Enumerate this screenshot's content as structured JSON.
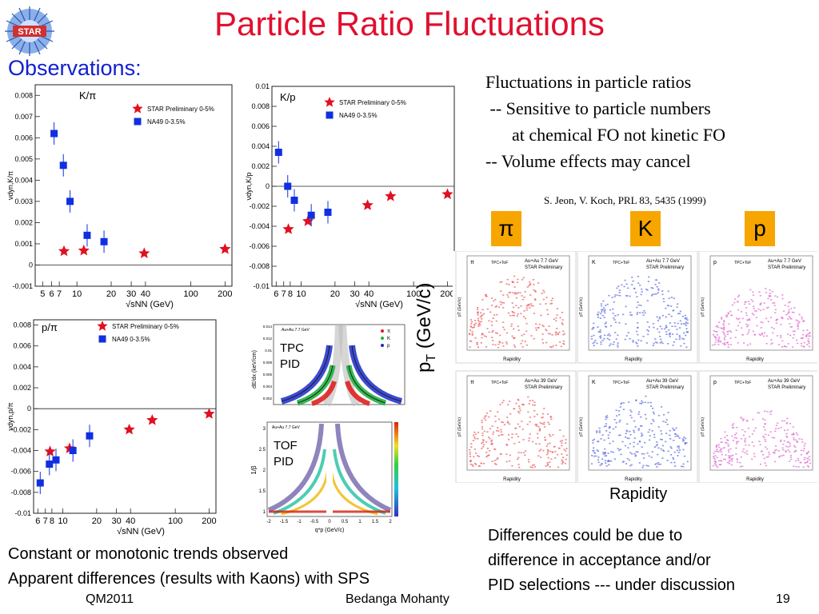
{
  "title": "Particle Ratio Fluctuations",
  "logo_text": "STAR",
  "observations_label": "Observations:",
  "right_text": {
    "line1": "Fluctuations in particle ratios",
    "line2": " -- Sensitive to particle numbers",
    "line3": "      at chemical FO not kinetic FO",
    "line4": "-- Volume effects may cancel"
  },
  "citation": "S. Jeon, V. Koch, PRL 83, 5435 (1999)",
  "pid_labels": {
    "pi": "π",
    "k": "K",
    "p": "p"
  },
  "pt_axis_label": "pT (GeV/c)",
  "rapidity_label": "Rapidity",
  "differences_text": {
    "line1": "Differences could be due to",
    "line2": "difference in acceptance and/or",
    "line3": "PID selections --- under discussion"
  },
  "conclusion_text": {
    "line1": "Constant or monotonic trends observed",
    "line2": "Apparent differences (results with Kaons) with SPS"
  },
  "footer": {
    "left": "QM2011",
    "middle": "Bedanga Mohanty",
    "right": "19"
  },
  "tpc_label": "TPC PID",
  "tof_label": "TOF PID",
  "tpc_plot": {
    "header": "Au+Au 7.7 GeV",
    "ylabel": "dE/dx (keV/cm)",
    "legend": [
      "π",
      "K",
      "p"
    ],
    "yticks": [
      "0.014",
      "0.012",
      "0.01",
      "0.008",
      "0.006",
      "0.004",
      "0.002"
    ]
  },
  "tof_plot": {
    "header": "Au+Au 7.7 GeV",
    "ylabel": "1/β",
    "xlabel": "q*p (GeV/c)",
    "xticks": [
      "-2",
      "-1.5",
      "-1",
      "-0.5",
      "0",
      "0.5",
      "1",
      "1.5",
      "2"
    ],
    "yticks": [
      "3",
      "2.5",
      "2",
      "1.5",
      "1"
    ]
  },
  "acceptance_plots": {
    "row1_header": "Au+Au 7.7 GeV",
    "row2_header": "Au+Au 39 GeV",
    "method": "TPC+ToF",
    "prelim": "STAR Preliminary",
    "species": [
      "π",
      "K",
      "p"
    ],
    "xlabel": "Rapidity",
    "ylabel": "pT (GeV/c)",
    "colors": [
      "#e86060",
      "#6070e0",
      "#e070d0"
    ]
  },
  "chart_data": [
    {
      "type": "scatter",
      "title": "K/π",
      "ylabel": "νdyn,K/π",
      "xlabel": "√sNN (GeV)",
      "xscale": "log",
      "xticks": [
        5,
        6,
        7,
        10,
        20,
        30,
        40,
        100,
        200
      ],
      "yticks": [
        -0.001,
        0,
        0.001,
        0.002,
        0.003,
        0.004,
        0.005,
        0.006,
        0.007,
        0.008
      ],
      "ylim": [
        -0.001,
        0.0085
      ],
      "xlim": [
        4.3,
        230
      ],
      "series": [
        {
          "name": "STAR Preliminary 0-5%",
          "marker": "star",
          "color": "#e01020",
          "x": [
            7.7,
            11.5,
            39,
            200
          ],
          "y": [
            0.00065,
            0.00068,
            0.00055,
            0.00075
          ]
        },
        {
          "name": "NA49 0-3.5%",
          "marker": "square",
          "color": "#1030e0",
          "x": [
            6.3,
            7.6,
            8.7,
            12.3,
            17.3
          ],
          "y": [
            0.0062,
            0.0047,
            0.003,
            0.0014,
            0.0011
          ]
        }
      ]
    },
    {
      "type": "scatter",
      "title": "K/p",
      "ylabel": "νdyn,K/p",
      "xlabel": "√sNN (GeV)",
      "xscale": "log",
      "xticks": [
        6,
        7,
        8,
        10,
        20,
        30,
        40,
        100,
        200
      ],
      "yticks": [
        -0.01,
        -0.008,
        -0.006,
        -0.004,
        -0.002,
        0,
        0.002,
        0.004,
        0.006,
        0.008,
        0.01
      ],
      "ylim": [
        -0.01,
        0.01
      ],
      "xlim": [
        5.5,
        230
      ],
      "series": [
        {
          "name": "STAR Preliminary 0-5%",
          "marker": "star",
          "color": "#e01020",
          "x": [
            7.7,
            11.5,
            39,
            62.4,
            200
          ],
          "y": [
            -0.0043,
            -0.0035,
            -0.0019,
            -0.001,
            -0.0008
          ]
        },
        {
          "name": "NA49 0-3.5%",
          "marker": "square",
          "color": "#1030e0",
          "x": [
            6.3,
            7.6,
            8.7,
            12.3,
            17.3
          ],
          "y": [
            0.0034,
            0.0,
            -0.0014,
            -0.0029,
            -0.0026
          ]
        }
      ]
    },
    {
      "type": "scatter",
      "title": "p/π",
      "ylabel": "νdyn,p/π",
      "xlabel": "√sNN (GeV)",
      "xscale": "log",
      "xticks": [
        6,
        7,
        8,
        10,
        20,
        30,
        40,
        100,
        200
      ],
      "yticks": [
        -0.01,
        -0.008,
        -0.006,
        -0.004,
        -0.002,
        0,
        0.002,
        0.004,
        0.006,
        0.008
      ],
      "ylim": [
        -0.01,
        0.0085
      ],
      "xlim": [
        5.5,
        230
      ],
      "series": [
        {
          "name": "STAR Preliminary 0-5%",
          "marker": "star",
          "color": "#e01020",
          "x": [
            7.7,
            11.5,
            39,
            62.4,
            200
          ],
          "y": [
            -0.0041,
            -0.0038,
            -0.002,
            -0.0011,
            -0.0005
          ]
        },
        {
          "name": "NA49 0-3.5%",
          "marker": "square",
          "color": "#1030e0",
          "x": [
            6.3,
            7.6,
            8.7,
            12.3,
            17.3
          ],
          "y": [
            -0.0071,
            -0.0053,
            -0.0049,
            -0.004,
            -0.0026
          ]
        }
      ]
    }
  ]
}
